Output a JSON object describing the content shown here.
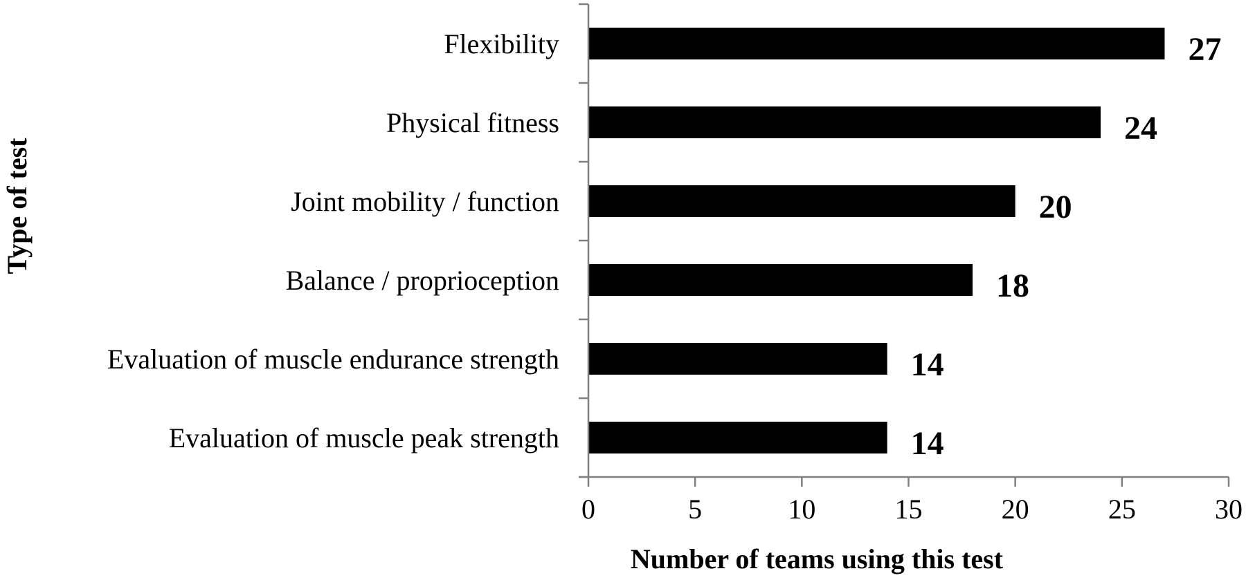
{
  "chart_data": {
    "type": "bar",
    "orientation": "horizontal",
    "title": "",
    "xlabel": "Number of teams using this test",
    "ylabel": "Type of test",
    "categories": [
      "Flexibility",
      "Physical fitness",
      "Joint mobility / function",
      "Balance / proprioception",
      "Evaluation of muscle endurance strength",
      "Evaluation of muscle peak strength"
    ],
    "values": [
      27,
      24,
      20,
      18,
      14,
      14
    ],
    "data_labels": [
      "27",
      "24",
      "20",
      "18",
      "14",
      "14"
    ],
    "xlim": [
      0,
      30
    ],
    "xticks": [
      0,
      5,
      10,
      15,
      20,
      25,
      30
    ],
    "xtick_labels": [
      "0",
      "5",
      "10",
      "15",
      "20",
      "25",
      "30"
    ],
    "grid": false,
    "legend": "none",
    "bar_color": "#000000",
    "axis_color": "#808080"
  }
}
